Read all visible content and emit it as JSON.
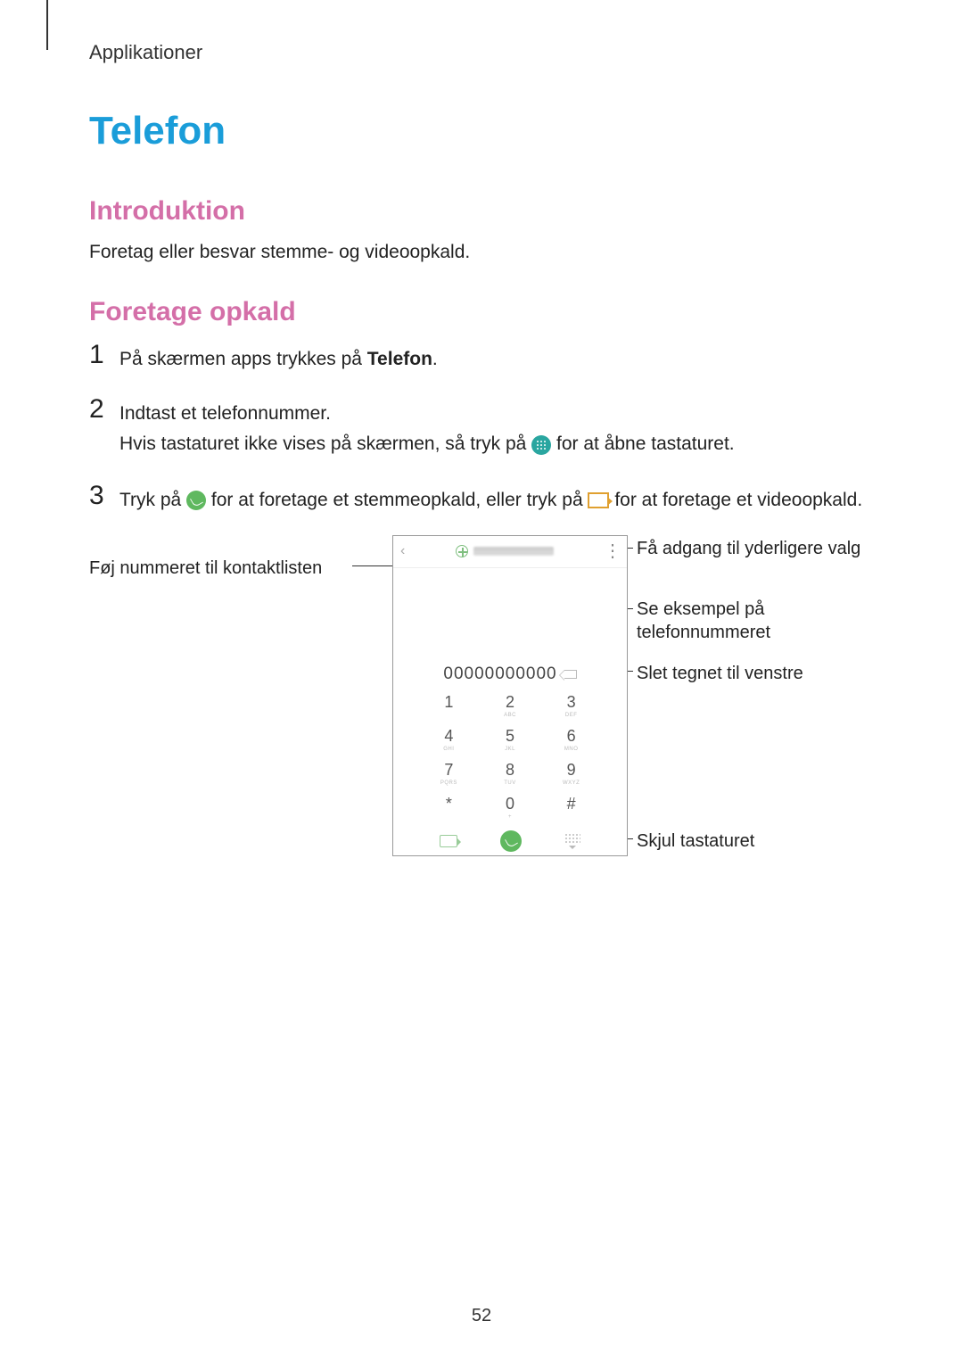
{
  "colors": {
    "h1": "#1a9dd9",
    "h2": "#d46fa8",
    "text": "#222222",
    "line": "#333333",
    "green": "#5fb85f",
    "teal": "#2aa6a0",
    "video_border": "#e0a030"
  },
  "header": "Applikationer",
  "h1": "Telefon",
  "intro": {
    "heading": "Introduktion",
    "text": "Foretag eller besvar stemme- og videoopkald."
  },
  "make_call": {
    "heading": "Foretage opkald",
    "steps": {
      "s1": {
        "num": "1",
        "pre": "På skærmen apps trykkes på ",
        "bold": "Telefon",
        "post": "."
      },
      "s2": {
        "num": "2",
        "line1": "Indtast et telefonnummer.",
        "line2a": "Hvis tastaturet ikke vises på skærmen, så tryk på ",
        "line2b": " for at åbne tastaturet."
      },
      "s3": {
        "num": "3",
        "a": "Tryk på ",
        "b": " for at foretage et stemmeopkald, eller tryk på ",
        "c": " for at foretage et videoopkald."
      }
    }
  },
  "callouts": {
    "add_contact": "Føj nummeret til kontaktlisten",
    "more_options": "Få adgang til yderligere valg",
    "preview_number_l1": "Se eksempel på",
    "preview_number_l2": "telefonnummeret",
    "delete_left": "Slet tegnet til venstre",
    "hide_keyboard": "Skjul tastaturet"
  },
  "phone_ui": {
    "display_number": "00000000000",
    "keypad": [
      {
        "d": "1",
        "s": ""
      },
      {
        "d": "2",
        "s": "ABC"
      },
      {
        "d": "3",
        "s": "DEF"
      },
      {
        "d": "4",
        "s": "GHI"
      },
      {
        "d": "5",
        "s": "JKL"
      },
      {
        "d": "6",
        "s": "MNO"
      },
      {
        "d": "7",
        "s": "PQRS"
      },
      {
        "d": "8",
        "s": "TUV"
      },
      {
        "d": "9",
        "s": "WXYZ"
      },
      {
        "d": "*",
        "s": ""
      },
      {
        "d": "0",
        "s": "+"
      },
      {
        "d": "#",
        "s": ""
      }
    ]
  },
  "page_number": "52"
}
